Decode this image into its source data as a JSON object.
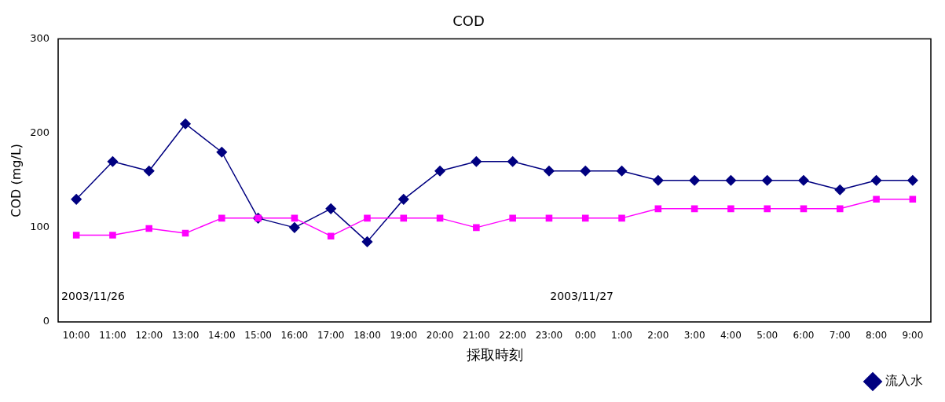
{
  "chart_data": {
    "type": "line",
    "title": "COD",
    "xlabel": "採取時刻",
    "ylabel": "COD (mg/L)",
    "categories": [
      "10:00",
      "11:00",
      "12:00",
      "13:00",
      "14:00",
      "15:00",
      "16:00",
      "17:00",
      "18:00",
      "19:00",
      "20:00",
      "21:00",
      "22:00",
      "23:00",
      "0:00",
      "1:00",
      "2:00",
      "3:00",
      "4:00",
      "5:00",
      "6:00",
      "7:00",
      "8:00",
      "9:00"
    ],
    "series": [
      {
        "name": "流入水",
        "color": "#000080",
        "marker": "diamond",
        "values": [
          130,
          170,
          160,
          210,
          180,
          110,
          100,
          120,
          85,
          130,
          160,
          170,
          170,
          160,
          160,
          160,
          150,
          150,
          150,
          150,
          150,
          140,
          150,
          150
        ]
      },
      {
        "color": "#ff00ff",
        "marker": "square",
        "values": [
          92,
          92,
          99,
          94,
          110,
          110,
          110,
          91,
          110,
          110,
          110,
          100,
          110,
          110,
          110,
          110,
          120,
          120,
          120,
          120,
          120,
          120,
          130,
          130
        ]
      }
    ],
    "ylim": [
      0,
      300
    ],
    "yticks": [
      0,
      100,
      200,
      300
    ],
    "grid": false,
    "legend": "bottom right",
    "annotations": [
      "2003/11/26",
      "2003/11/27"
    ]
  }
}
